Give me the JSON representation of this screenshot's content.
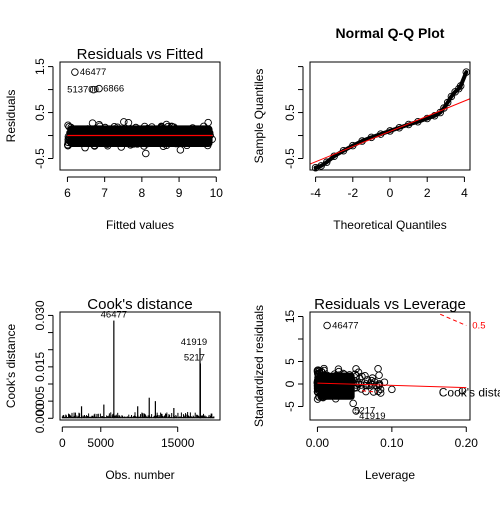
{
  "chart_data": [
    {
      "type": "scatter",
      "title": "Residuals vs Fitted",
      "xlabel": "Fitted values",
      "ylabel": "Residuals",
      "xlim": [
        5.8,
        10.1
      ],
      "ylim": [
        -0.75,
        1.6
      ],
      "x_ticks": [
        "6",
        "7",
        "8",
        "9",
        "10"
      ],
      "y_ticks": [
        "-0.5",
        "0.5",
        "1.5"
      ],
      "annotations": [
        "46477",
        "513700",
        "6866"
      ],
      "labeled_points": [
        {
          "label": "46477",
          "x": 6.2,
          "y": 1.38
        },
        {
          "label": "513700",
          "x": 6.7,
          "y": 1.0
        },
        {
          "label": "6866",
          "x": 6.85,
          "y": 1.02
        }
      ],
      "fit_line_color": "#ff0000"
    },
    {
      "type": "scatter",
      "title": "Normal Q-Q Plot",
      "xlabel": "Theoretical Quantiles",
      "ylabel": "Sample Quantiles",
      "xlim": [
        -4.3,
        4.3
      ],
      "ylim": [
        -0.75,
        1.6
      ],
      "x_ticks": [
        "-4",
        "-2",
        "0",
        "2",
        "4"
      ],
      "y_ticks": [
        "-0.5",
        "0.5"
      ],
      "qq_points": [
        {
          "x": -4.0,
          "y": -0.7
        },
        {
          "x": -3.7,
          "y": -0.66
        },
        {
          "x": -3.4,
          "y": -0.58
        },
        {
          "x": -3.0,
          "y": -0.45
        },
        {
          "x": -2.5,
          "y": -0.33
        },
        {
          "x": -2.0,
          "y": -0.22
        },
        {
          "x": -1.5,
          "y": -0.12
        },
        {
          "x": -1.0,
          "y": -0.04
        },
        {
          "x": -0.5,
          "y": 0.03
        },
        {
          "x": 0.0,
          "y": 0.1
        },
        {
          "x": 0.5,
          "y": 0.17
        },
        {
          "x": 1.0,
          "y": 0.24
        },
        {
          "x": 1.5,
          "y": 0.3
        },
        {
          "x": 2.0,
          "y": 0.37
        },
        {
          "x": 2.4,
          "y": 0.43
        },
        {
          "x": 2.7,
          "y": 0.5
        },
        {
          "x": 2.9,
          "y": 0.6
        },
        {
          "x": 3.1,
          "y": 0.72
        },
        {
          "x": 3.3,
          "y": 0.85
        },
        {
          "x": 3.5,
          "y": 0.95
        },
        {
          "x": 3.7,
          "y": 1.02
        },
        {
          "x": 3.8,
          "y": 1.08
        },
        {
          "x": 4.1,
          "y": 1.38
        }
      ],
      "ref_line": [
        {
          "x": -4.3,
          "y": -0.62
        },
        {
          "x": 4.3,
          "y": 0.8
        }
      ],
      "ref_line_color": "#ff0000"
    },
    {
      "type": "bar",
      "title": "Cook's distance",
      "xlabel": "Obs. number",
      "ylabel": "Cook's distance",
      "xlim": [
        -300,
        20500
      ],
      "ylim": [
        -0.0005,
        0.031
      ],
      "x_ticks": [
        "0",
        "5000",
        "15000"
      ],
      "y_ticks": [
        "0.000",
        "0.005",
        "0.015",
        "0.030"
      ],
      "spikes": [
        {
          "x": 6700,
          "y": 0.0285,
          "label": "46477"
        },
        {
          "x": 17900,
          "y": 0.0205,
          "label": "41919"
        },
        {
          "x": 17950,
          "y": 0.016,
          "label": "5217"
        },
        {
          "x": 11300,
          "y": 0.006
        },
        {
          "x": 12100,
          "y": 0.005
        },
        {
          "x": 2500,
          "y": 0.0035
        },
        {
          "x": 5400,
          "y": 0.004
        },
        {
          "x": 9800,
          "y": 0.0035
        },
        {
          "x": 14500,
          "y": 0.003
        }
      ]
    },
    {
      "type": "scatter",
      "title": "Residuals vs Leverage",
      "xlabel": "Leverage",
      "ylabel": "Standardized residuals",
      "xlim": [
        -0.01,
        0.205
      ],
      "ylim": [
        -8,
        16
      ],
      "x_ticks": [
        "0.00",
        "0.10",
        "0.20"
      ],
      "y_ticks": [
        "-5",
        "0",
        "5",
        "15"
      ],
      "labeled_points": [
        {
          "label": "46477",
          "x": 0.013,
          "y": 13
        },
        {
          "label": "5217",
          "x": 0.048,
          "y": -4.3
        },
        {
          "label": "41919",
          "x": 0.052,
          "y": -6.0
        }
      ],
      "cooks_label": "Cook's distance",
      "cooks_contour_label": "0.5",
      "contour_color": "#ff0000"
    }
  ]
}
